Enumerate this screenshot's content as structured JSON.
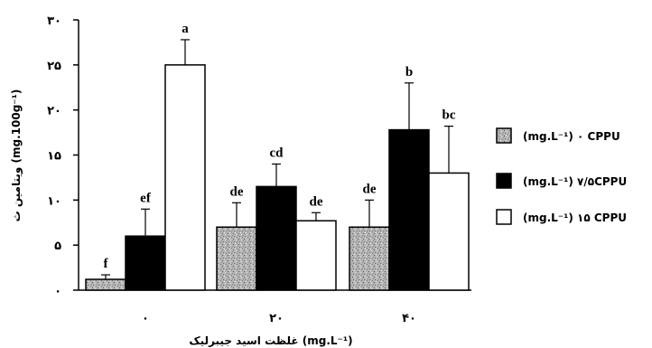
{
  "chart_data": {
    "type": "bar",
    "title": "",
    "xlabel": "(mg.L⁻¹) غلظت اسید جیبرلیک",
    "ylabel": "ویتامین ث (mg.100g⁻¹)",
    "ylim": [
      0,
      30
    ],
    "y_ticks": [
      0,
      5,
      10,
      15,
      20,
      25,
      30
    ],
    "y_tick_labels": [
      "٠",
      "۵",
      "١٠",
      "١۵",
      "٢٠",
      "٢۵",
      "٣٠"
    ],
    "categories": [
      "٠",
      "٢٠",
      "۴٠"
    ],
    "series": [
      {
        "name": "(mg.L⁻¹) ٠ CPPU",
        "fill": "#a8a8a8",
        "pattern": "speckled-gray",
        "values": [
          1.2,
          7.0,
          7.0
        ],
        "errors": [
          0.5,
          2.7,
          3.0
        ],
        "labels": [
          "f",
          "de",
          "de"
        ]
      },
      {
        "name": "(mg.L⁻¹) ٧/۵CPPU",
        "fill": "#000000",
        "pattern": "solid",
        "values": [
          6.0,
          11.5,
          17.8
        ],
        "errors": [
          3.0,
          2.5,
          5.2
        ],
        "labels": [
          "ef",
          "cd",
          "b"
        ]
      },
      {
        "name": "(mg.L⁻¹) ١۵ CPPU",
        "fill": "#ffffff",
        "pattern": "outline",
        "values": [
          25.0,
          7.7,
          13.0
        ],
        "errors": [
          2.8,
          0.9,
          5.2
        ],
        "labels": [
          "a",
          "de",
          "bc"
        ]
      }
    ],
    "legend_position": "right",
    "grid": false
  }
}
